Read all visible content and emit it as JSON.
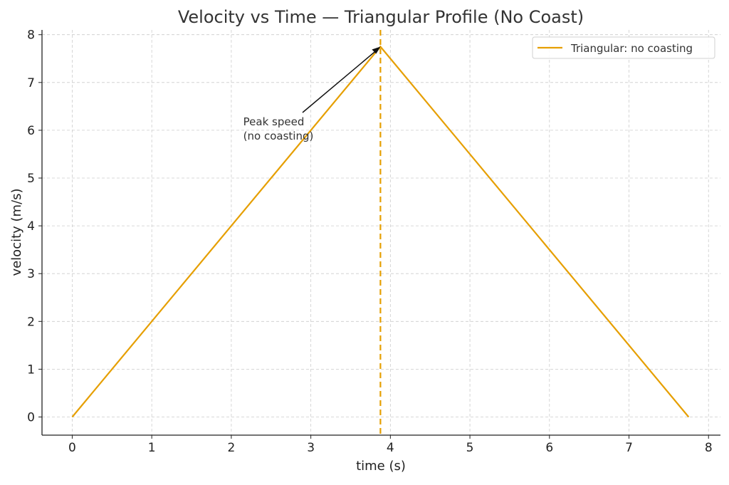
{
  "chart_data": {
    "type": "line",
    "title": "Velocity vs Time — Triangular Profile (No Coast)",
    "xlabel": "time (s)",
    "ylabel": "velocity (m/s)",
    "xlim": [
      -0.38,
      8.15
    ],
    "ylim": [
      -0.38,
      8.1
    ],
    "xticks": [
      0,
      1,
      2,
      3,
      4,
      5,
      6,
      7,
      8
    ],
    "yticks": [
      0,
      1,
      2,
      3,
      4,
      5,
      6,
      7,
      8
    ],
    "grid": true,
    "legend_position": "top-right",
    "series": [
      {
        "name": "Triangular: no coasting",
        "color": "#E69F00",
        "x": [
          0,
          3.875,
          7.75
        ],
        "y": [
          0,
          7.75,
          0
        ]
      }
    ],
    "vline": {
      "x": 3.875,
      "color": "#E69F00",
      "style": "dashed"
    },
    "annotation": {
      "text_lines": [
        "Peak speed",
        "(no coasting)"
      ],
      "text_x": 2.15,
      "text_y": 6.2,
      "arrow_to_x": 3.875,
      "arrow_to_y": 7.75
    }
  }
}
